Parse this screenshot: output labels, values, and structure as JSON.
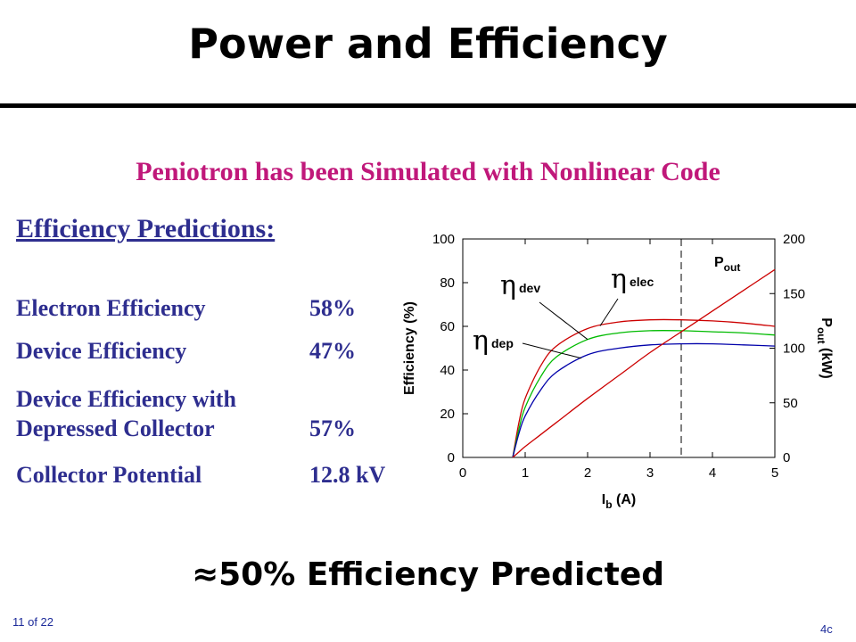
{
  "title": "Power and Efficiency",
  "subtitle": "Peniotron has been Simulated with Nonlinear Code",
  "efficiency_heading": "Efficiency Predictions:",
  "predictions": [
    {
      "label": "Electron Efficiency",
      "value": "58%"
    },
    {
      "label": "Device Efficiency",
      "value": "47%"
    },
    {
      "label": "Device Efficiency with",
      "value": ""
    },
    {
      "label": "Depressed Collector",
      "value": "57%"
    },
    {
      "label": "Collector Potential",
      "value": "12.8 kV"
    }
  ],
  "bottom_text": "≈50% Efficiency Predicted",
  "footer": {
    "page": "11 of 22",
    "slide_id": "4c"
  },
  "chart_data": {
    "type": "line",
    "x": [
      0.8,
      0.9,
      1.0,
      1.25,
      1.5,
      2.0,
      2.5,
      3.0,
      3.5,
      4.0,
      4.5,
      5.0
    ],
    "xlabel": {
      "main": "I",
      "sub": "b",
      "rest": " (A)"
    },
    "xlim": [
      0,
      5
    ],
    "xticks": [
      0,
      1,
      2,
      3,
      4,
      5
    ],
    "ylabel_left": "Efficiency (%)",
    "ylim_left": [
      0,
      100
    ],
    "yticks_left": [
      0,
      20,
      40,
      60,
      80,
      100
    ],
    "ylabel_right": {
      "main": "P",
      "sub": "out",
      "rest": " (kW)"
    },
    "ylim_right": [
      0,
      200
    ],
    "yticks_right": [
      0,
      50,
      100,
      150,
      200
    ],
    "vline_x": 3.5,
    "series": [
      {
        "key": "elec",
        "axis": "left",
        "color": "#cc0000",
        "values": [
          0,
          16,
          27,
          42,
          51,
          59,
          62,
          63,
          63,
          62.5,
          61.5,
          60
        ]
      },
      {
        "key": "dev",
        "axis": "left",
        "color": "#00bb00",
        "values": [
          0,
          13,
          23,
          37,
          46,
          54,
          57,
          58,
          58,
          57.5,
          57,
          56
        ]
      },
      {
        "key": "dep",
        "axis": "left",
        "color": "#0000aa",
        "values": [
          0,
          11,
          19,
          31,
          39,
          47,
          50,
          51.5,
          52,
          52,
          51.5,
          51
        ]
      },
      {
        "key": "pout",
        "axis": "right",
        "color": "#cc0000",
        "values": [
          0,
          5,
          10,
          21,
          32,
          54,
          75,
          96,
          115,
          134,
          153,
          172
        ]
      }
    ],
    "annotations": [
      {
        "sym": "η",
        "sub": "elec",
        "target_x": 2.2,
        "series": "elec"
      },
      {
        "sym": "η",
        "sub": "dev",
        "target_x": 2.0,
        "series": "dev"
      },
      {
        "sym": "η",
        "sub": "dep",
        "target_x": 1.9,
        "series": "dep"
      },
      {
        "sym": "P",
        "sub": "out"
      }
    ]
  }
}
